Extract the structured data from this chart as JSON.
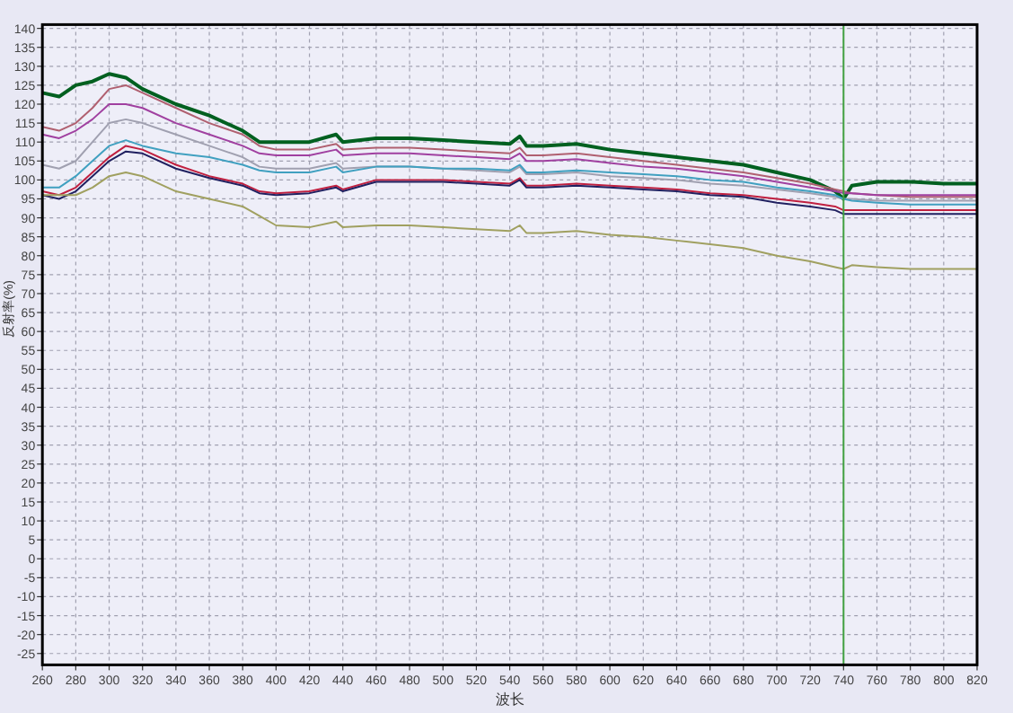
{
  "chart_data": {
    "type": "line",
    "xlabel": "波长",
    "ylabel": "反射率(%)",
    "x": [
      260,
      270,
      280,
      290,
      300,
      310,
      320,
      340,
      360,
      380,
      390,
      400,
      420,
      436,
      440,
      460,
      480,
      500,
      520,
      540,
      546,
      550,
      560,
      580,
      600,
      620,
      640,
      660,
      680,
      700,
      720,
      735,
      740,
      745,
      760,
      780,
      800,
      820
    ],
    "series": [
      {
        "color": "#006020",
        "values": [
          123,
          122,
          125,
          126,
          128,
          127,
          124,
          120,
          117,
          113,
          110,
          110,
          110,
          112,
          110,
          111,
          111,
          110.5,
          110,
          109.5,
          111.5,
          109,
          109,
          109.5,
          108,
          107,
          106,
          105,
          104,
          102,
          100,
          97,
          95,
          98.5,
          99.5,
          99.5,
          99,
          99
        ]
      },
      {
        "color": "#b06070",
        "values": [
          114,
          113,
          115,
          119,
          124,
          125,
          123,
          119,
          115,
          112,
          109,
          108,
          108,
          109.5,
          108,
          108.5,
          108.5,
          108,
          107.5,
          107,
          108.5,
          106.5,
          106.5,
          107,
          106,
          105,
          104,
          103,
          102,
          100.5,
          99,
          97.5,
          97,
          96.5,
          96,
          95.5,
          95.5,
          95.5
        ]
      },
      {
        "color": "#a040a0",
        "values": [
          112,
          111,
          113,
          116,
          120,
          120,
          119,
          115,
          112,
          109,
          107,
          106.5,
          106.5,
          108,
          106.5,
          107,
          107,
          106.5,
          106,
          105.5,
          107,
          105,
          105,
          105.5,
          104.5,
          103.5,
          103,
          102,
          101,
          99.5,
          98,
          97,
          96.5,
          96.5,
          96,
          96,
          96,
          96
        ]
      },
      {
        "color": "#a0a0b0",
        "values": [
          104,
          103,
          105,
          110,
          115,
          116,
          115,
          112,
          109,
          106,
          103.5,
          103,
          103,
          104.5,
          103,
          103.5,
          103.5,
          103,
          102.5,
          102,
          103.5,
          101.5,
          101.5,
          102,
          101,
          100.5,
          100,
          99,
          98.5,
          97.5,
          96.5,
          95.5,
          95,
          95,
          94.5,
          94.5,
          94.5,
          94.5
        ]
      },
      {
        "color": "#40a0c0",
        "values": [
          98,
          98,
          101,
          105,
          109,
          110.5,
          109,
          107,
          106,
          104,
          102.5,
          102,
          102,
          103.5,
          102,
          103.5,
          103.5,
          103,
          103,
          102.5,
          104,
          102,
          102,
          102.5,
          102,
          101.5,
          101,
          100,
          99.5,
          98,
          97,
          96,
          95,
          94.5,
          94,
          93.5,
          93.5,
          93.5
        ]
      },
      {
        "color": "#c02040",
        "values": [
          97,
          96,
          98,
          102,
          106,
          109,
          108,
          104,
          101,
          99,
          97,
          96.5,
          97,
          98.5,
          97.5,
          100,
          100,
          100,
          99.5,
          99,
          100.5,
          98.5,
          98.5,
          99,
          98.5,
          98,
          97.5,
          96.5,
          96,
          95,
          94,
          93,
          92,
          92,
          92,
          92,
          92,
          92
        ]
      },
      {
        "color": "#202060",
        "values": [
          96,
          95,
          97,
          101,
          105,
          107.5,
          107,
          103,
          100.5,
          98.5,
          96.5,
          96,
          96.5,
          98,
          97,
          99.5,
          99.5,
          99.5,
          99,
          98.5,
          100,
          98,
          98,
          98.5,
          98,
          97.5,
          97,
          96,
          95.5,
          94,
          93,
          92,
          91,
          91,
          91,
          91,
          91,
          91
        ]
      },
      {
        "color": "#a0a060",
        "values": [
          96,
          96,
          96,
          98,
          101,
          102,
          101,
          97,
          95,
          93,
          90.5,
          88,
          87.5,
          89,
          87.5,
          88,
          88,
          87.5,
          87,
          86.5,
          88,
          86,
          86,
          86.5,
          85.5,
          85,
          84,
          83,
          82,
          80,
          78.5,
          77,
          76.5,
          77.5,
          77,
          76.5,
          76.5,
          76.5
        ]
      }
    ],
    "xlim": [
      260,
      820
    ],
    "ylim": [
      -28,
      141
    ],
    "xticks": [
      260,
      280,
      300,
      320,
      340,
      360,
      380,
      400,
      420,
      440,
      460,
      480,
      500,
      520,
      540,
      560,
      580,
      600,
      620,
      640,
      660,
      680,
      700,
      720,
      740,
      760,
      780,
      800,
      820
    ],
    "yticks": [
      -25,
      -20,
      -15,
      -10,
      -5,
      0,
      5,
      10,
      15,
      20,
      25,
      30,
      35,
      40,
      45,
      50,
      55,
      60,
      65,
      70,
      75,
      80,
      85,
      90,
      95,
      100,
      105,
      110,
      115,
      120,
      125,
      130,
      135,
      140
    ],
    "grid": true,
    "ref_lines": [
      {
        "axis": "x",
        "value": 740,
        "color": "#40a040"
      }
    ]
  }
}
